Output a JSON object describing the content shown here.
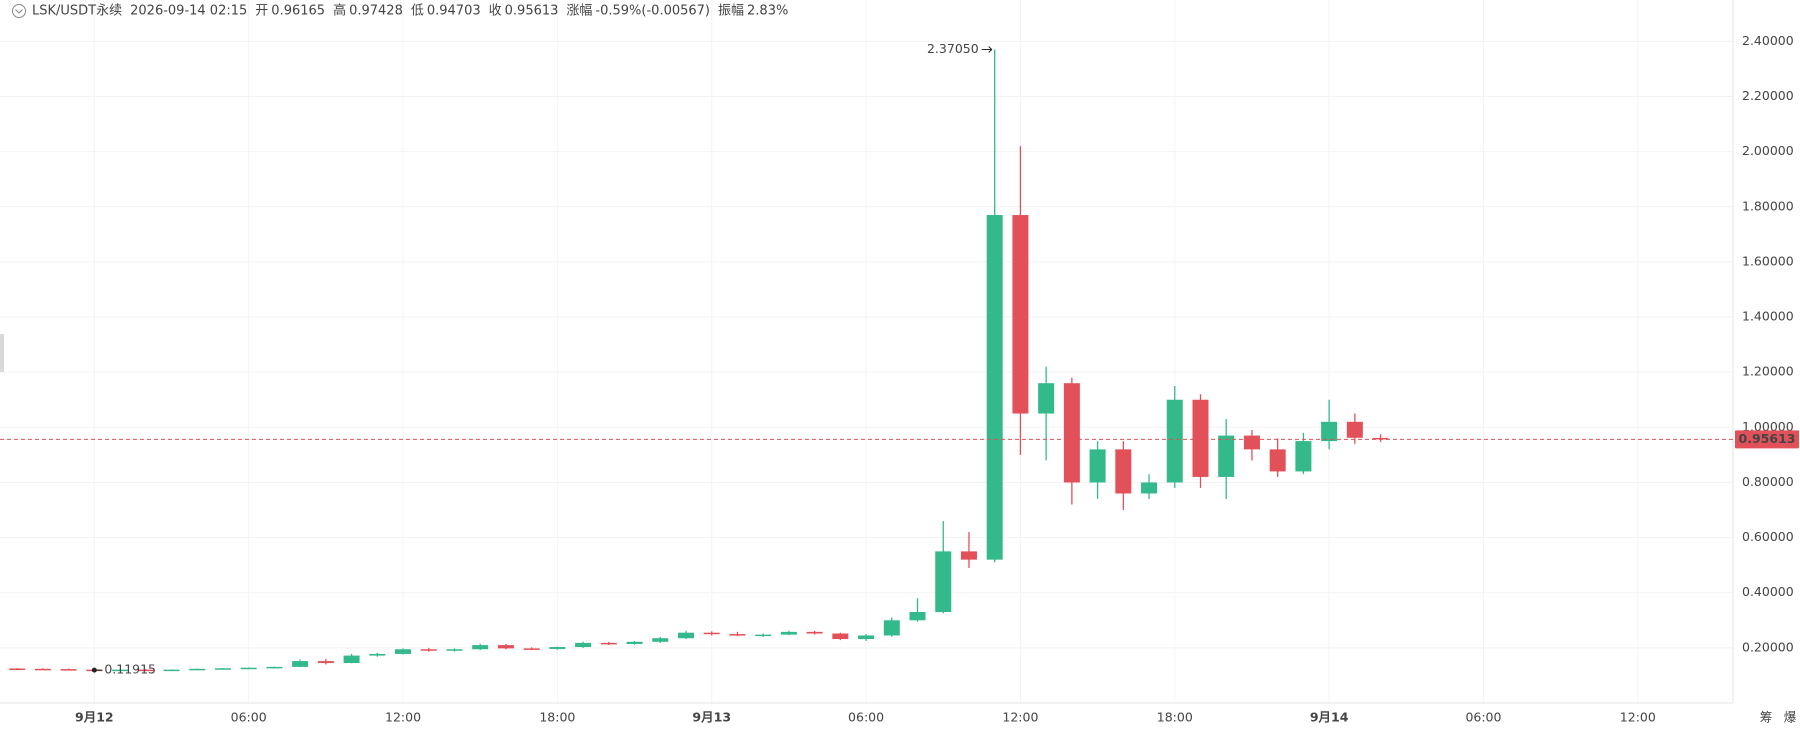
{
  "header": {
    "symbol": "LSK/USDT永续",
    "time": "2026-09-14 02:15",
    "fields": [
      {
        "label": "开",
        "value": "0.96165"
      },
      {
        "label": "高",
        "value": "0.97428"
      },
      {
        "label": "低",
        "value": "0.94703"
      },
      {
        "label": "收",
        "value": "0.95613"
      },
      {
        "label": "涨幅",
        "value": "-0.59%(-0.00567)"
      },
      {
        "label": "振幅",
        "value": "2.83%"
      }
    ]
  },
  "side_tools": [
    "筹",
    "爆"
  ],
  "chart_data": {
    "type": "candlestick",
    "up_color": "#34b98b",
    "down_color": "#e2515a",
    "x": [
      "09-11 21:00",
      "09-11 22:00",
      "09-11 23:00",
      "09-12 00:00",
      "09-12 01:00",
      "09-12 02:00",
      "09-12 03:00",
      "09-12 04:00",
      "09-12 05:00",
      "09-12 06:00",
      "09-12 07:00",
      "09-12 08:00",
      "09-12 09:00",
      "09-12 10:00",
      "09-12 11:00",
      "09-12 12:00",
      "09-12 13:00",
      "09-12 14:00",
      "09-12 15:00",
      "09-12 16:00",
      "09-12 17:00",
      "09-12 18:00",
      "09-12 19:00",
      "09-12 20:00",
      "09-12 21:00",
      "09-12 22:00",
      "09-12 23:00",
      "09-13 00:00",
      "09-13 01:00",
      "09-13 02:00",
      "09-13 03:00",
      "09-13 04:00",
      "09-13 05:00",
      "09-13 06:00",
      "09-13 07:00",
      "09-13 08:00",
      "09-13 09:00",
      "09-13 10:00",
      "09-13 11:00",
      "09-13 12:00",
      "09-13 13:00",
      "09-13 14:00",
      "09-13 15:00",
      "09-13 16:00",
      "09-13 17:00",
      "09-13 18:00",
      "09-13 19:00",
      "09-13 20:00",
      "09-13 21:00",
      "09-13 22:00",
      "09-13 23:00",
      "09-14 00:00",
      "09-14 01:00",
      "09-14 02:00"
    ],
    "open": [
      0.125,
      0.124,
      0.123,
      0.121,
      0.12,
      0.121,
      0.12,
      0.121,
      0.124,
      0.126,
      0.128,
      0.131,
      0.152,
      0.145,
      0.172,
      0.178,
      0.195,
      0.19,
      0.195,
      0.21,
      0.198,
      0.196,
      0.203,
      0.218,
      0.214,
      0.222,
      0.235,
      0.255,
      0.25,
      0.246,
      0.248,
      0.258,
      0.252,
      0.232,
      0.245,
      0.3,
      0.33,
      0.55,
      0.52,
      1.77,
      1.05,
      1.16,
      0.8,
      0.92,
      0.76,
      0.8,
      1.1,
      0.82,
      0.97,
      0.92,
      0.84,
      0.95,
      1.02,
      0.96165
    ],
    "high": [
      0.127,
      0.126,
      0.125,
      0.123,
      0.122,
      0.123,
      0.122,
      0.125,
      0.127,
      0.129,
      0.132,
      0.158,
      0.16,
      0.178,
      0.182,
      0.198,
      0.2,
      0.198,
      0.215,
      0.214,
      0.202,
      0.205,
      0.222,
      0.222,
      0.225,
      0.24,
      0.262,
      0.26,
      0.258,
      0.252,
      0.262,
      0.262,
      0.255,
      0.25,
      0.31,
      0.38,
      0.66,
      0.62,
      2.3705,
      2.02,
      1.22,
      1.18,
      0.95,
      0.95,
      0.83,
      1.15,
      1.12,
      1.03,
      0.99,
      0.96,
      0.98,
      1.1,
      1.05,
      0.97428
    ],
    "low": [
      0.123,
      0.122,
      0.12,
      0.11915,
      0.118,
      0.119,
      0.118,
      0.12,
      0.122,
      0.124,
      0.126,
      0.13,
      0.14,
      0.144,
      0.168,
      0.176,
      0.186,
      0.186,
      0.192,
      0.195,
      0.192,
      0.193,
      0.2,
      0.21,
      0.212,
      0.218,
      0.232,
      0.245,
      0.242,
      0.24,
      0.246,
      0.248,
      0.228,
      0.225,
      0.24,
      0.295,
      0.325,
      0.49,
      0.51,
      0.9,
      0.88,
      0.72,
      0.74,
      0.7,
      0.74,
      0.78,
      0.78,
      0.74,
      0.88,
      0.82,
      0.83,
      0.92,
      0.94,
      0.94703
    ],
    "close": [
      0.124,
      0.123,
      0.121,
      0.12,
      0.121,
      0.12,
      0.121,
      0.124,
      0.126,
      0.128,
      0.131,
      0.152,
      0.145,
      0.172,
      0.178,
      0.195,
      0.19,
      0.195,
      0.21,
      0.198,
      0.196,
      0.203,
      0.218,
      0.214,
      0.222,
      0.235,
      0.255,
      0.25,
      0.246,
      0.248,
      0.258,
      0.252,
      0.232,
      0.245,
      0.3,
      0.33,
      0.55,
      0.52,
      1.77,
      1.05,
      1.16,
      0.8,
      0.92,
      0.76,
      0.8,
      1.1,
      0.82,
      0.97,
      0.92,
      0.84,
      0.95,
      1.02,
      0.962,
      0.95613
    ],
    "xlim": [
      "09-11 20:20",
      "09-14 15:42"
    ],
    "xticks": [
      {
        "value": "09-12 00:00",
        "label": "9月12"
      },
      {
        "value": "09-12 06:00",
        "label": "06:00"
      },
      {
        "value": "09-12 12:00",
        "label": "12:00"
      },
      {
        "value": "09-12 18:00",
        "label": "18:00"
      },
      {
        "value": "09-13 00:00",
        "label": "9月13"
      },
      {
        "value": "09-13 06:00",
        "label": "06:00"
      },
      {
        "value": "09-13 12:00",
        "label": "12:00"
      },
      {
        "value": "09-13 18:00",
        "label": "18:00"
      },
      {
        "value": "09-14 00:00",
        "label": "9月14"
      },
      {
        "value": "09-14 06:00",
        "label": "06:00"
      },
      {
        "value": "09-14 12:00",
        "label": "12:00"
      }
    ],
    "ylim": [
      0,
      2.55
    ],
    "yticks": [
      {
        "value": 0.2,
        "label": "0.20000"
      },
      {
        "value": 0.4,
        "label": "0.40000"
      },
      {
        "value": 0.6,
        "label": "0.60000"
      },
      {
        "value": 0.8,
        "label": "0.80000"
      },
      {
        "value": 1.0,
        "label": "1.00000"
      },
      {
        "value": 1.2,
        "label": "1.20000"
      },
      {
        "value": 1.4,
        "label": "1.40000"
      },
      {
        "value": 1.6,
        "label": "1.60000"
      },
      {
        "value": 1.8,
        "label": "1.80000"
      },
      {
        "value": 2.0,
        "label": "2.00000"
      },
      {
        "value": 2.2,
        "label": "2.20000"
      },
      {
        "value": 2.4,
        "label": "2.40000"
      }
    ],
    "grid": true,
    "last_price": {
      "value": 0.95613,
      "label": "0.95613",
      "color": "#e2515a"
    },
    "annotations": [
      {
        "x": "09-13 11:00",
        "value": 2.3705,
        "label": "2.37050"
      },
      {
        "x": "09-12 00:00",
        "value": 0.11915,
        "label": "0.11915"
      }
    ]
  }
}
